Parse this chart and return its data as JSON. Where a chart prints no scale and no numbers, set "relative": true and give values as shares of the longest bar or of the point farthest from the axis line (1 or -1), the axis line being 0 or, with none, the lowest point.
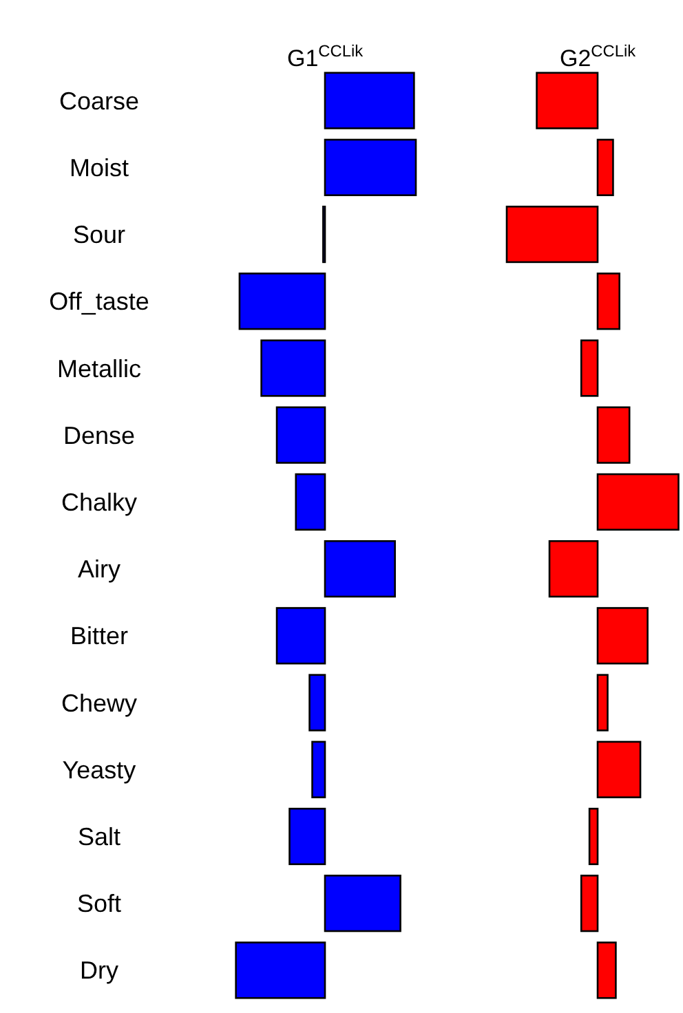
{
  "chart_data": [
    {
      "type": "bar",
      "orientation": "horizontal",
      "relative": true,
      "title": "G1$^{CCLik}$",
      "categories": [
        "Coarse",
        "Moist",
        "Sour",
        "Off_taste",
        "Metallic",
        "Dense",
        "Chalky",
        "Airy",
        "Bitter",
        "Chewy",
        "Yeasty",
        "Salt",
        "Soft",
        "Dry"
      ],
      "series": [
        {
          "color": "#0000ff",
          "values": [
            0.98,
            1,
            -0.02,
            -0.94,
            -0.7,
            -0.53,
            -0.32,
            0.77,
            -0.53,
            -0.17,
            -0.14,
            -0.39,
            0.83,
            -0.98
          ]
        }
      ]
    },
    {
      "type": "bar",
      "orientation": "horizontal",
      "relative": true,
      "title": "G2$^{CCLik}$",
      "tick_labels": false,
      "categories": [
        "Coarse",
        "Moist",
        "Sour",
        "Off_taste",
        "Metallic",
        "Dense",
        "Chalky",
        "Airy",
        "Bitter",
        "Chewy",
        "Yeasty",
        "Salt",
        "Soft",
        "Dry"
      ],
      "series": [
        {
          "color": "#ff0000",
          "values": [
            -0.67,
            0.17,
            -1,
            0.24,
            -0.18,
            0.35,
            0.89,
            -0.53,
            0.55,
            0.11,
            0.47,
            -0.09,
            -0.18,
            0.2
          ]
        }
      ]
    }
  ]
}
